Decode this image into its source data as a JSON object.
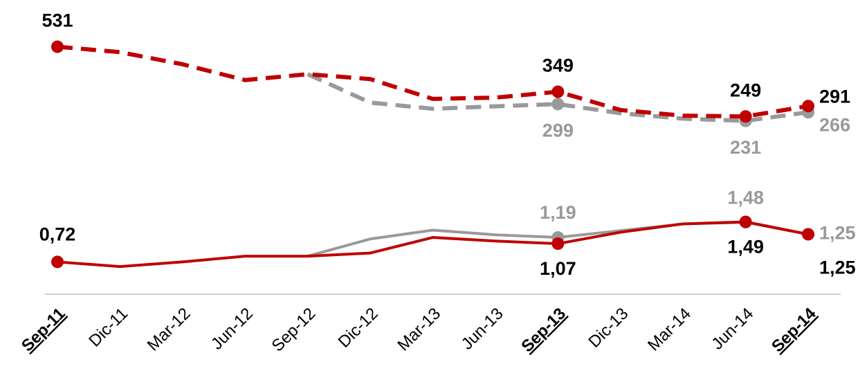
{
  "chart_data": {
    "type": "line",
    "categories": [
      "Sep-11",
      "Dic-11",
      "Mar-12",
      "Jun-12",
      "Sep-12",
      "Dic-12",
      "Mar-13",
      "Jun-13",
      "Sep-13",
      "Dic-13",
      "Mar-14",
      "Jun-14",
      "Sep-14"
    ],
    "highlight_categories": [
      "Sep-11",
      "Sep-13",
      "Sep-14"
    ],
    "ylim": [
      -470,
      720
    ],
    "y2lim": [
      0.1,
      5.75
    ],
    "series": [
      {
        "color": "#999999",
        "style": "dashed",
        "values": [
          null,
          null,
          null,
          null,
          420,
          305,
          280,
          290,
          299,
          262,
          240,
          231,
          266
        ],
        "value_labels": [
          null,
          null,
          null,
          null,
          null,
          null,
          null,
          null,
          "299",
          null,
          null,
          "231",
          "266"
        ]
      },
      {
        "color": "#c00000",
        "style": "dashed",
        "values": [
          531,
          509,
          460,
          396,
          420,
          400,
          320,
          325,
          349,
          275,
          252,
          249,
          291
        ],
        "value_labels": [
          "531",
          null,
          null,
          null,
          null,
          null,
          null,
          null,
          "349",
          null,
          null,
          "249",
          "291"
        ]
      },
      {
        "color": "#999999",
        "style": "solid",
        "axis": "y2",
        "values": [
          null,
          null,
          null,
          null,
          0.83,
          1.16,
          1.33,
          1.24,
          1.19,
          1.32,
          1.45,
          1.48,
          1.25
        ],
        "value_labels": [
          null,
          null,
          null,
          null,
          null,
          null,
          null,
          null,
          "1,19",
          null,
          null,
          "1,48",
          "1,25"
        ]
      },
      {
        "color": "#c00000",
        "style": "solid",
        "axis": "y2",
        "values": [
          0.72,
          0.63,
          0.72,
          0.83,
          0.83,
          0.89,
          1.19,
          1.12,
          1.07,
          1.29,
          1.45,
          1.49,
          1.25
        ],
        "value_labels": [
          "0,72",
          null,
          null,
          null,
          null,
          null,
          null,
          null,
          "1,07",
          null,
          null,
          "1,49",
          "1,25"
        ]
      }
    ]
  }
}
